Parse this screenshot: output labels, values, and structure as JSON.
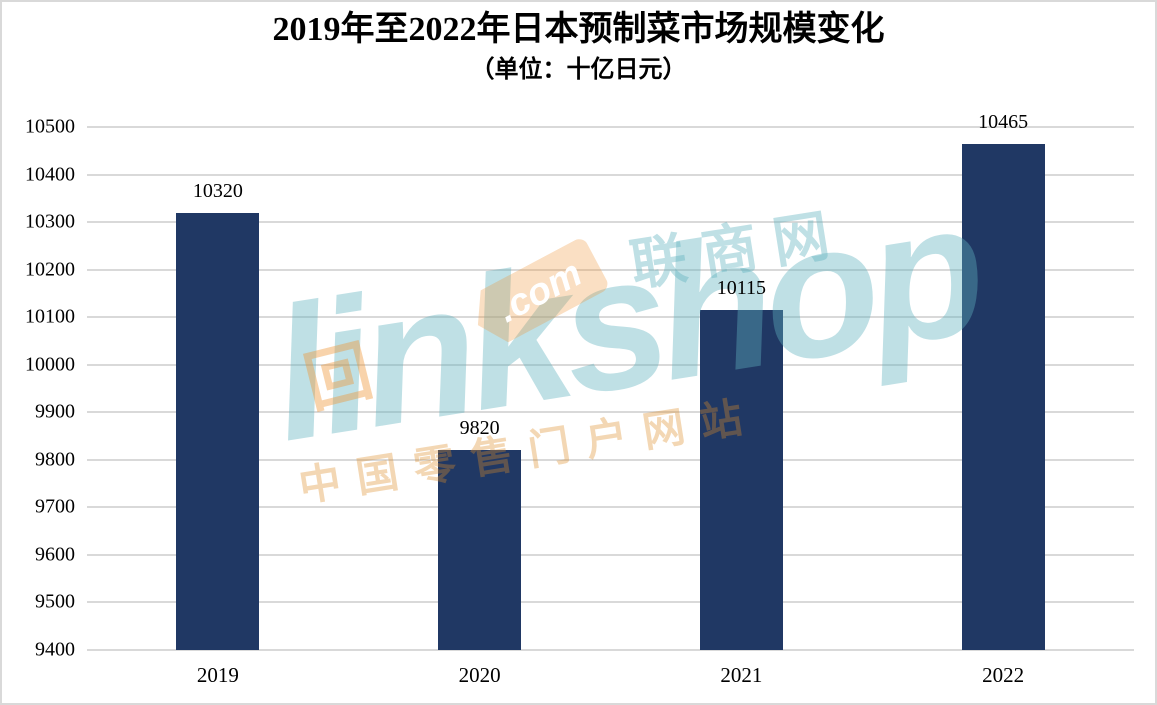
{
  "chart_data": {
    "type": "bar",
    "title": "2019年至2022年日本预制菜市场规模变化",
    "subtitle": "（单位：十亿日元）",
    "categories": [
      "2019",
      "2020",
      "2021",
      "2022"
    ],
    "values": [
      10320,
      9820,
      10115,
      10465
    ],
    "xlabel": "",
    "ylabel": "",
    "ylim": [
      9400,
      10500
    ],
    "ytick_step": 100,
    "grid": true,
    "legend": false,
    "value_labels": true,
    "bar_color": "#203864",
    "gridline_color": "#d9d9d9",
    "label_color": "#000000"
  },
  "watermark": {
    "brand": "linkshop",
    "tld": ".com",
    "cn_name": "联商网",
    "slogan": "中国零售门户网站",
    "logo_icon": "回",
    "teal_color": "#5eb2bd",
    "orange_color": "#ee9637"
  }
}
